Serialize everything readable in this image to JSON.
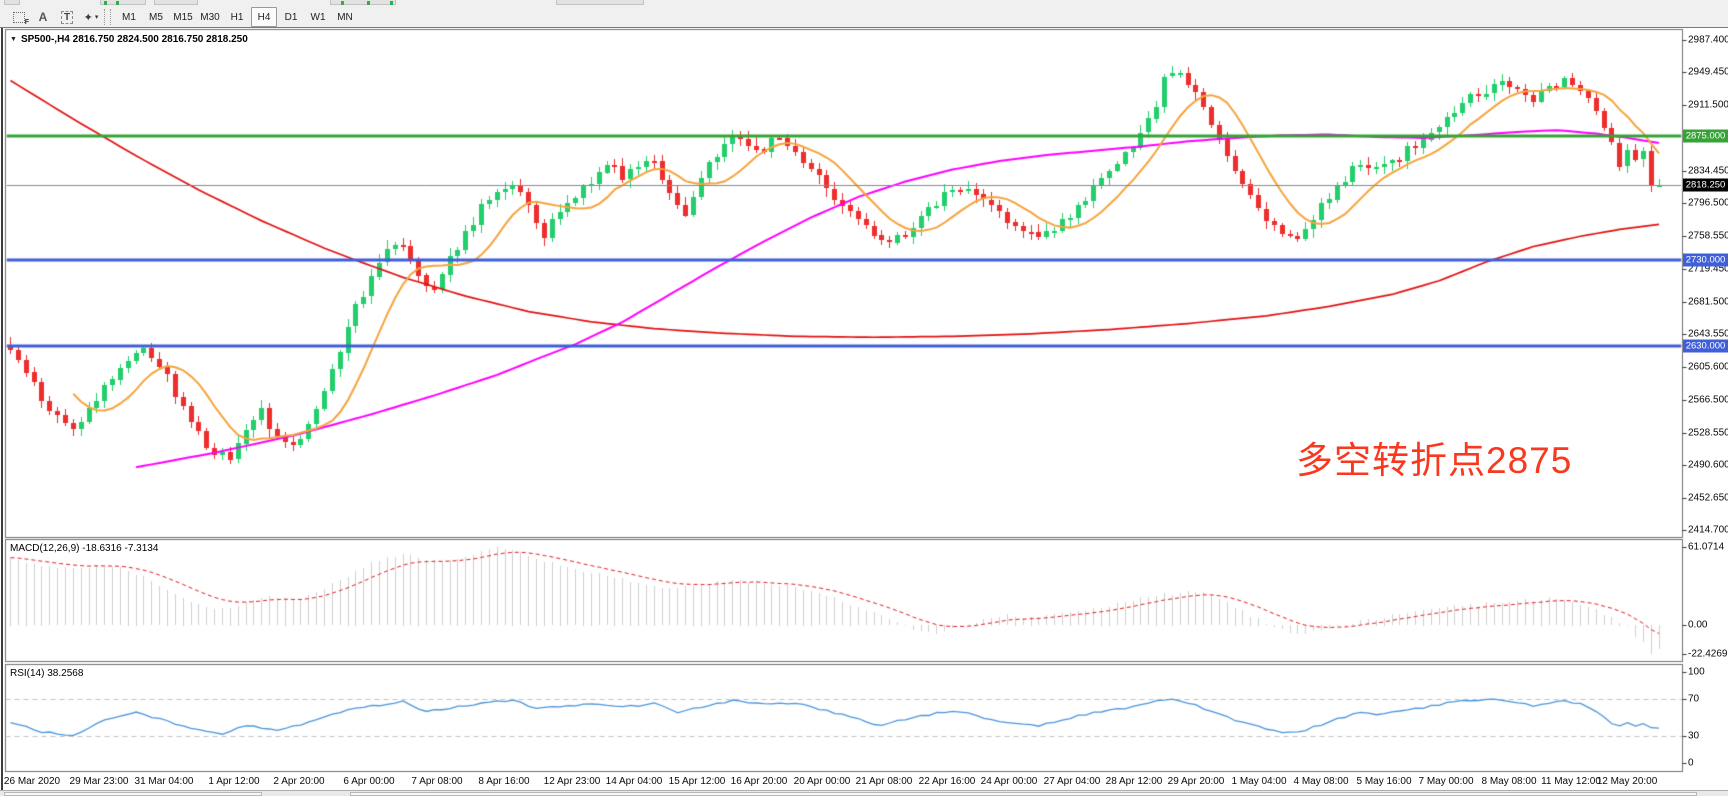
{
  "toolbar": {
    "tools": [
      {
        "name": "fibonacci-tool",
        "glyph": "F"
      },
      {
        "name": "text-label-tool",
        "glyph": "A"
      },
      {
        "name": "text-tool",
        "glyph": "T"
      },
      {
        "name": "arrows-tool",
        "glyph": "✦"
      }
    ],
    "timeframes": [
      "M1",
      "M5",
      "M15",
      "M30",
      "H1",
      "H4",
      "D1",
      "W1",
      "MN"
    ],
    "active_timeframe": "H4"
  },
  "chart": {
    "title": "SP500-,H4  2816.750 2824.500 2816.750 2818.250",
    "symbol": "SP500-",
    "timeframe": "H4"
  },
  "annotation": {
    "text": "多空转折点2875",
    "color": "#f8381f"
  },
  "colors": {
    "bull": "#23cf6c",
    "bear": "#ee2d2d",
    "ma_fast": "#f6a43e",
    "ma_medium": "#ff00ff",
    "ma_slow": "#e01212",
    "hline_green": "#36a336",
    "hline_blue": "#3e5fd7",
    "bid_line": "#7f8b91",
    "macd_histogram": "#cfcfcf",
    "macd_signal": "#e32020",
    "rsi_line": "#4c96dc",
    "rsi_levels": "#c4c4c4",
    "label_green_bg": "#36a336",
    "label_blue_bg": "#3e5fd7",
    "label_black_bg": "#000000"
  },
  "chart_data": {
    "type": "candlestick",
    "bars": 211,
    "last_ohlc": {
      "open": 2816.75,
      "high": 2824.5,
      "low": 2816.75,
      "close": 2818.25
    },
    "price_noise": 6,
    "close_waypoints": [
      [
        0,
        2625
      ],
      [
        2,
        2602
      ],
      [
        4,
        2566
      ],
      [
        6,
        2548
      ],
      [
        8,
        2532
      ],
      [
        10,
        2556
      ],
      [
        12,
        2582
      ],
      [
        15,
        2616
      ],
      [
        17,
        2628
      ],
      [
        19,
        2608
      ],
      [
        22,
        2558
      ],
      [
        25,
        2512
      ],
      [
        28,
        2498
      ],
      [
        30,
        2528
      ],
      [
        32,
        2556
      ],
      [
        34,
        2520
      ],
      [
        36,
        2508
      ],
      [
        38,
        2540
      ],
      [
        41,
        2600
      ],
      [
        43,
        2655
      ],
      [
        46,
        2712
      ],
      [
        48,
        2748
      ],
      [
        50,
        2752
      ],
      [
        52,
        2715
      ],
      [
        54,
        2695
      ],
      [
        56,
        2732
      ],
      [
        58,
        2762
      ],
      [
        60,
        2790
      ],
      [
        62,
        2812
      ],
      [
        64,
        2822
      ],
      [
        66,
        2790
      ],
      [
        68,
        2758
      ],
      [
        70,
        2788
      ],
      [
        72,
        2808
      ],
      [
        74,
        2822
      ],
      [
        76,
        2846
      ],
      [
        78,
        2830
      ],
      [
        80,
        2842
      ],
      [
        82,
        2848
      ],
      [
        84,
        2810
      ],
      [
        86,
        2780
      ],
      [
        88,
        2822
      ],
      [
        90,
        2856
      ],
      [
        92,
        2874
      ],
      [
        94,
        2866
      ],
      [
        96,
        2862
      ],
      [
        98,
        2874
      ],
      [
        100,
        2856
      ],
      [
        102,
        2838
      ],
      [
        105,
        2806
      ],
      [
        108,
        2776
      ],
      [
        111,
        2748
      ],
      [
        114,
        2762
      ],
      [
        117,
        2788
      ],
      [
        119,
        2806
      ],
      [
        121,
        2816
      ],
      [
        124,
        2800
      ],
      [
        127,
        2780
      ],
      [
        129,
        2764
      ],
      [
        131,
        2752
      ],
      [
        134,
        2776
      ],
      [
        137,
        2802
      ],
      [
        139,
        2822
      ],
      [
        141,
        2840
      ],
      [
        143,
        2862
      ],
      [
        145,
        2890
      ],
      [
        147,
        2940
      ],
      [
        148,
        2952
      ],
      [
        150,
        2940
      ],
      [
        152,
        2905
      ],
      [
        154,
        2870
      ],
      [
        156,
        2836
      ],
      [
        158,
        2806
      ],
      [
        160,
        2780
      ],
      [
        162,
        2760
      ],
      [
        164,
        2756
      ],
      [
        166,
        2782
      ],
      [
        168,
        2802
      ],
      [
        170,
        2824
      ],
      [
        172,
        2846
      ],
      [
        174,
        2836
      ],
      [
        176,
        2846
      ],
      [
        178,
        2858
      ],
      [
        180,
        2872
      ],
      [
        182,
        2886
      ],
      [
        184,
        2904
      ],
      [
        186,
        2920
      ],
      [
        188,
        2930
      ],
      [
        190,
        2936
      ],
      [
        192,
        2930
      ],
      [
        194,
        2920
      ],
      [
        196,
        2932
      ],
      [
        198,
        2944
      ],
      [
        200,
        2930
      ],
      [
        202,
        2908
      ],
      [
        203,
        2888
      ],
      [
        204,
        2862
      ],
      [
        205,
        2842
      ],
      [
        206,
        2862
      ],
      [
        207,
        2842
      ],
      [
        208,
        2856
      ],
      [
        209,
        2816.75
      ],
      [
        210,
        2818.25
      ]
    ],
    "hlines": [
      {
        "value": 2875,
        "label": "2875.000",
        "color": "#36a336",
        "width": 3,
        "label_bg": "#36a336"
      },
      {
        "value": 2730,
        "label": "2730.000",
        "color": "#3e5fd7",
        "width": 3,
        "label_bg": "#3e5fd7"
      },
      {
        "value": 2630,
        "label": "2630.000",
        "color": "#3e5fd7",
        "width": 3,
        "label_bg": "#3e5fd7"
      },
      {
        "value": 2818.25,
        "label": "2818.250",
        "color": "#7f8b91",
        "width": 1,
        "label_bg": "#000000"
      }
    ],
    "ma_lines": [
      {
        "name": "ma-fast-orange",
        "color": "#f6a43e",
        "period": 9
      },
      {
        "name": "ma-medium-magenta",
        "color": "#ff00ff",
        "waypoints": [
          [
            16,
            2488
          ],
          [
            26,
            2505
          ],
          [
            36,
            2525
          ],
          [
            46,
            2550
          ],
          [
            54,
            2572
          ],
          [
            62,
            2596
          ],
          [
            68,
            2618
          ],
          [
            72,
            2632
          ],
          [
            78,
            2658
          ],
          [
            84,
            2690
          ],
          [
            90,
            2722
          ],
          [
            96,
            2752
          ],
          [
            102,
            2780
          ],
          [
            108,
            2804
          ],
          [
            114,
            2822
          ],
          [
            120,
            2836
          ],
          [
            126,
            2846
          ],
          [
            132,
            2853
          ],
          [
            138,
            2858
          ],
          [
            144,
            2863
          ],
          [
            150,
            2869
          ],
          [
            156,
            2873
          ],
          [
            162,
            2876
          ],
          [
            168,
            2877
          ],
          [
            174,
            2874
          ],
          [
            180,
            2873
          ],
          [
            186,
            2876
          ],
          [
            192,
            2880
          ],
          [
            197,
            2882
          ],
          [
            202,
            2878
          ],
          [
            206,
            2873
          ],
          [
            210,
            2867
          ]
        ]
      },
      {
        "name": "ma-slow-red",
        "color": "#e01212",
        "waypoints": [
          [
            0,
            2940
          ],
          [
            8,
            2895
          ],
          [
            16,
            2852
          ],
          [
            24,
            2812
          ],
          [
            32,
            2776
          ],
          [
            40,
            2744
          ],
          [
            44,
            2730
          ],
          [
            50,
            2710
          ],
          [
            58,
            2688
          ],
          [
            66,
            2670
          ],
          [
            74,
            2658
          ],
          [
            82,
            2650
          ],
          [
            90,
            2645
          ],
          [
            100,
            2641
          ],
          [
            110,
            2640
          ],
          [
            120,
            2641
          ],
          [
            130,
            2644
          ],
          [
            140,
            2649
          ],
          [
            150,
            2656
          ],
          [
            160,
            2665
          ],
          [
            168,
            2676
          ],
          [
            176,
            2690
          ],
          [
            182,
            2706
          ],
          [
            188,
            2728
          ],
          [
            194,
            2746
          ],
          [
            200,
            2758
          ],
          [
            205,
            2766
          ],
          [
            210,
            2772
          ]
        ]
      }
    ],
    "price_axis": {
      "ticks": [
        {
          "label": "2987.400",
          "value": 2987.4
        },
        {
          "label": "2949.450",
          "value": 2949.45
        },
        {
          "label": "2911.500",
          "value": 2911.5
        },
        {
          "label": "2834.450",
          "value": 2834.45
        },
        {
          "label": "2796.500",
          "value": 2796.5
        },
        {
          "label": "2758.550",
          "value": 2758.55
        },
        {
          "label": "2719.450",
          "value": 2719.45
        },
        {
          "label": "2681.500",
          "value": 2681.5
        },
        {
          "label": "2643.550",
          "value": 2643.55
        },
        {
          "label": "2605.600",
          "value": 2605.6
        },
        {
          "label": "2566.500",
          "value": 2566.5
        },
        {
          "label": "2528.550",
          "value": 2528.55
        },
        {
          "label": "2490.600",
          "value": 2490.6
        },
        {
          "label": "2452.650",
          "value": 2452.65
        },
        {
          "label": "2414.700",
          "value": 2414.7
        }
      ]
    },
    "time_axis": {
      "labels": [
        "26 Mar 2020",
        "29 Mar 23:00",
        "31 Mar 04:00",
        "1 Apr 12:00",
        "2 Apr 20:00",
        "6 Apr 00:00",
        "7 Apr 08:00",
        "8 Apr 16:00",
        "12 Apr 23:00",
        "14 Apr 04:00",
        "15 Apr 12:00",
        "16 Apr 20:00",
        "20 Apr 00:00",
        "21 Apr 08:00",
        "22 Apr 16:00",
        "24 Apr 00:00",
        "27 Apr 04:00",
        "28 Apr 12:00",
        "29 Apr 20:00",
        "1 May 04:00",
        "4 May 08:00",
        "5 May 16:00",
        "7 May 00:00",
        "8 May 08:00",
        "11 May 12:00",
        "12 May 20:00"
      ]
    },
    "macd": {
      "label": "MACD(12,26,9) -18.6316 -7.3134",
      "main_value": -18.6316,
      "signal_value": -7.3134,
      "scale": [
        {
          "label": "61.0714",
          "value": 61.0714
        },
        {
          "label": "0.00",
          "value": 0
        },
        {
          "label": "-22.4269",
          "value": -22.4269
        }
      ],
      "waypoints": [
        [
          0,
          52
        ],
        [
          4,
          47
        ],
        [
          8,
          45
        ],
        [
          12,
          47
        ],
        [
          15,
          44
        ],
        [
          18,
          34
        ],
        [
          21,
          24
        ],
        [
          24,
          16
        ],
        [
          27,
          12
        ],
        [
          30,
          18
        ],
        [
          33,
          23
        ],
        [
          36,
          19
        ],
        [
          39,
          26
        ],
        [
          42,
          36
        ],
        [
          46,
          48
        ],
        [
          50,
          56
        ],
        [
          53,
          52
        ],
        [
          56,
          50
        ],
        [
          59,
          55
        ],
        [
          62,
          61
        ],
        [
          65,
          57
        ],
        [
          68,
          50
        ],
        [
          72,
          43
        ],
        [
          76,
          39
        ],
        [
          80,
          33
        ],
        [
          84,
          28
        ],
        [
          88,
          31
        ],
        [
          92,
          36
        ],
        [
          96,
          33
        ],
        [
          100,
          30
        ],
        [
          104,
          23
        ],
        [
          108,
          14
        ],
        [
          112,
          5
        ],
        [
          115,
          -3
        ],
        [
          118,
          -6
        ],
        [
          121,
          -2
        ],
        [
          124,
          5
        ],
        [
          127,
          8
        ],
        [
          130,
          6
        ],
        [
          133,
          8
        ],
        [
          137,
          12
        ],
        [
          141,
          17
        ],
        [
          145,
          22
        ],
        [
          149,
          26
        ],
        [
          152,
          25
        ],
        [
          155,
          18
        ],
        [
          158,
          8
        ],
        [
          161,
          -2
        ],
        [
          164,
          -7
        ],
        [
          168,
          -3
        ],
        [
          172,
          3
        ],
        [
          176,
          8
        ],
        [
          180,
          12
        ],
        [
          184,
          15
        ],
        [
          188,
          17
        ],
        [
          192,
          19
        ],
        [
          196,
          21
        ],
        [
          199,
          18
        ],
        [
          202,
          12
        ],
        [
          204,
          6
        ],
        [
          206,
          -2
        ],
        [
          207,
          -8
        ],
        [
          208,
          -14
        ],
        [
          209,
          -22.4
        ],
        [
          210,
          -18.6
        ]
      ]
    },
    "rsi": {
      "label": "RSI(14) 38.2568",
      "value": 38.2568,
      "levels": [
        70,
        30
      ],
      "scale": [
        {
          "label": "100",
          "value": 100
        },
        {
          "label": "70",
          "value": 70
        },
        {
          "label": "30",
          "value": 30
        },
        {
          "label": "0",
          "value": 0
        }
      ],
      "waypoints": [
        [
          0,
          45
        ],
        [
          4,
          34
        ],
        [
          8,
          30
        ],
        [
          12,
          48
        ],
        [
          16,
          56
        ],
        [
          19,
          48
        ],
        [
          23,
          38
        ],
        [
          27,
          31
        ],
        [
          30,
          42
        ],
        [
          34,
          36
        ],
        [
          38,
          44
        ],
        [
          42,
          56
        ],
        [
          46,
          63
        ],
        [
          50,
          67
        ],
        [
          53,
          57
        ],
        [
          56,
          60
        ],
        [
          60,
          66
        ],
        [
          64,
          69
        ],
        [
          67,
          59
        ],
        [
          70,
          62
        ],
        [
          74,
          65
        ],
        [
          78,
          61
        ],
        [
          82,
          66
        ],
        [
          85,
          56
        ],
        [
          88,
          62
        ],
        [
          92,
          69
        ],
        [
          96,
          65
        ],
        [
          100,
          66
        ],
        [
          104,
          57
        ],
        [
          108,
          48
        ],
        [
          111,
          41
        ],
        [
          114,
          48
        ],
        [
          118,
          55
        ],
        [
          121,
          57
        ],
        [
          124,
          50
        ],
        [
          127,
          45
        ],
        [
          131,
          41
        ],
        [
          134,
          48
        ],
        [
          138,
          55
        ],
        [
          142,
          60
        ],
        [
          146,
          68
        ],
        [
          148,
          71
        ],
        [
          150,
          66
        ],
        [
          152,
          60
        ],
        [
          154,
          54
        ],
        [
          156,
          47
        ],
        [
          158,
          42
        ],
        [
          160,
          37
        ],
        [
          162,
          34
        ],
        [
          164,
          33
        ],
        [
          166,
          40
        ],
        [
          168,
          45
        ],
        [
          170,
          51
        ],
        [
          172,
          56
        ],
        [
          174,
          52
        ],
        [
          176,
          55
        ],
        [
          178,
          58
        ],
        [
          180,
          61
        ],
        [
          182,
          64
        ],
        [
          184,
          67
        ],
        [
          186,
          69
        ],
        [
          188,
          70
        ],
        [
          190,
          69
        ],
        [
          192,
          66
        ],
        [
          194,
          63
        ],
        [
          196,
          66
        ],
        [
          198,
          69
        ],
        [
          200,
          65
        ],
        [
          202,
          57
        ],
        [
          203,
          50
        ],
        [
          204,
          43
        ],
        [
          205,
          40
        ],
        [
          206,
          45
        ],
        [
          207,
          41
        ],
        [
          208,
          44
        ],
        [
          209,
          38
        ],
        [
          210,
          38.26
        ]
      ]
    }
  }
}
